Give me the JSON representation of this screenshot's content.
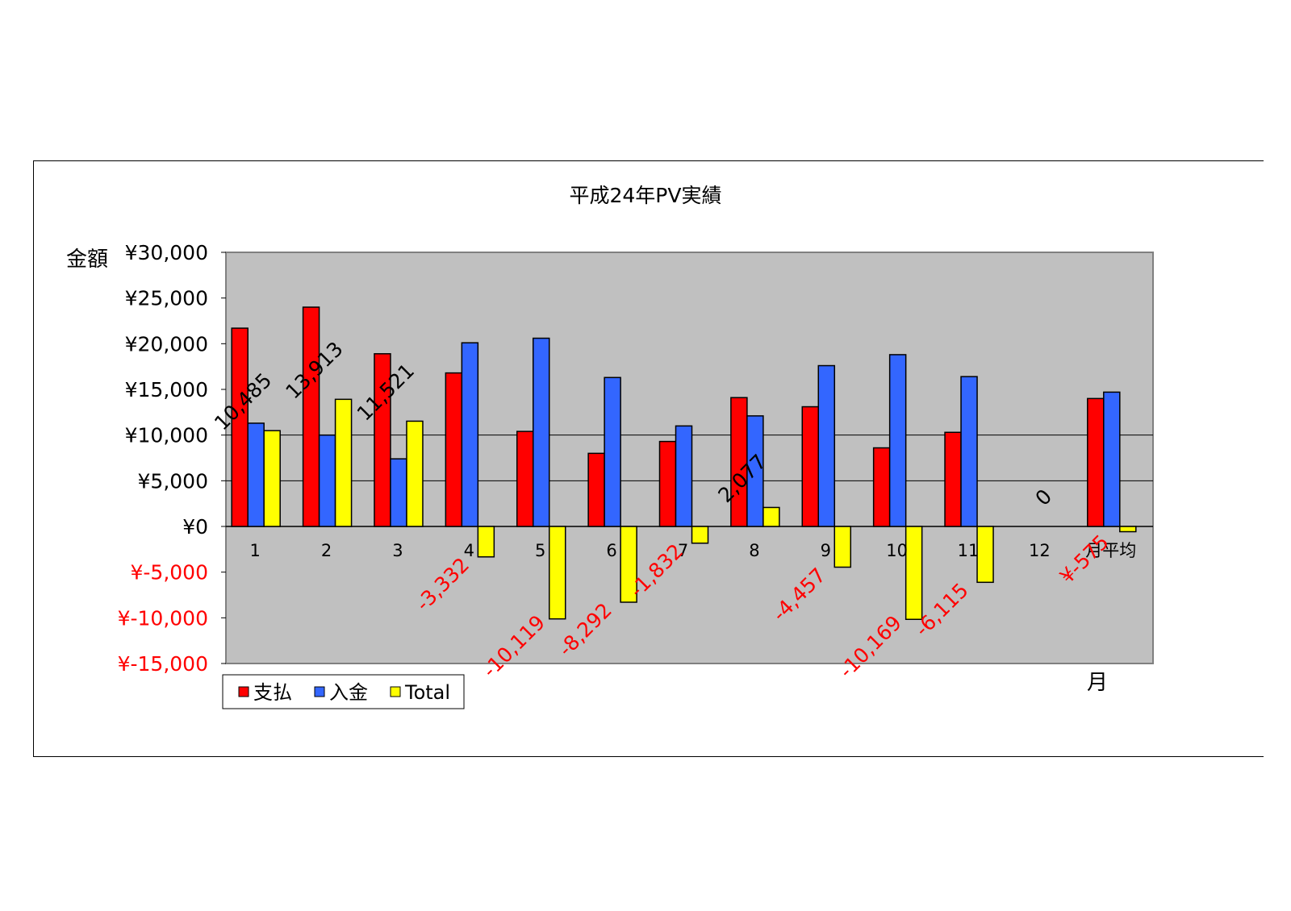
{
  "colors": {
    "plot_bg": "#c0c0c0",
    "grid": "#000000",
    "negative_text": "#ff0000",
    "positive_text": "#000000"
  },
  "chart_data": {
    "type": "bar",
    "title": "平成24年PV実績",
    "ylabel": "金額",
    "xlabel": "月",
    "ylim": [
      -15000,
      30000
    ],
    "ytick_values": [
      30000,
      25000,
      20000,
      15000,
      10000,
      5000,
      0,
      -5000,
      -10000,
      -15000
    ],
    "ytick_labels": [
      "¥30,000",
      "¥25,000",
      "¥20,000",
      "¥15,000",
      "¥10,000",
      "¥5,000",
      "¥0",
      "¥-5,000",
      "¥-10,000",
      "¥-15,000"
    ],
    "grid": true,
    "legend_position": "bottom-left",
    "categories": [
      "1",
      "2",
      "3",
      "4",
      "5",
      "6",
      "7",
      "8",
      "9",
      "10",
      "11",
      "12",
      "月平均"
    ],
    "series": [
      {
        "name": "支払",
        "color": "#ff0000",
        "values": [
          21700,
          24000,
          18900,
          16800,
          10400,
          8000,
          9300,
          14100,
          13100,
          8600,
          10300,
          0,
          14000
        ]
      },
      {
        "name": "入金",
        "color": "#3366ff",
        "values": [
          11300,
          10000,
          7400,
          20100,
          20600,
          16300,
          11000,
          12100,
          17600,
          18800,
          16400,
          0,
          14700
        ]
      },
      {
        "name": "Total",
        "color": "#ffff00",
        "values": [
          10485,
          13913,
          11521,
          -3332,
          -10119,
          -8292,
          -1832,
          2077,
          -4457,
          -10169,
          -6115,
          0,
          -575
        ]
      }
    ],
    "total_labels": [
      "10,485",
      "13,913",
      "11,521",
      "-3,332",
      "-10,119",
      "-8,292",
      "-1,832",
      "2,077",
      "-4,457",
      "-10,169",
      "-6,115",
      "0",
      "¥-575"
    ]
  }
}
